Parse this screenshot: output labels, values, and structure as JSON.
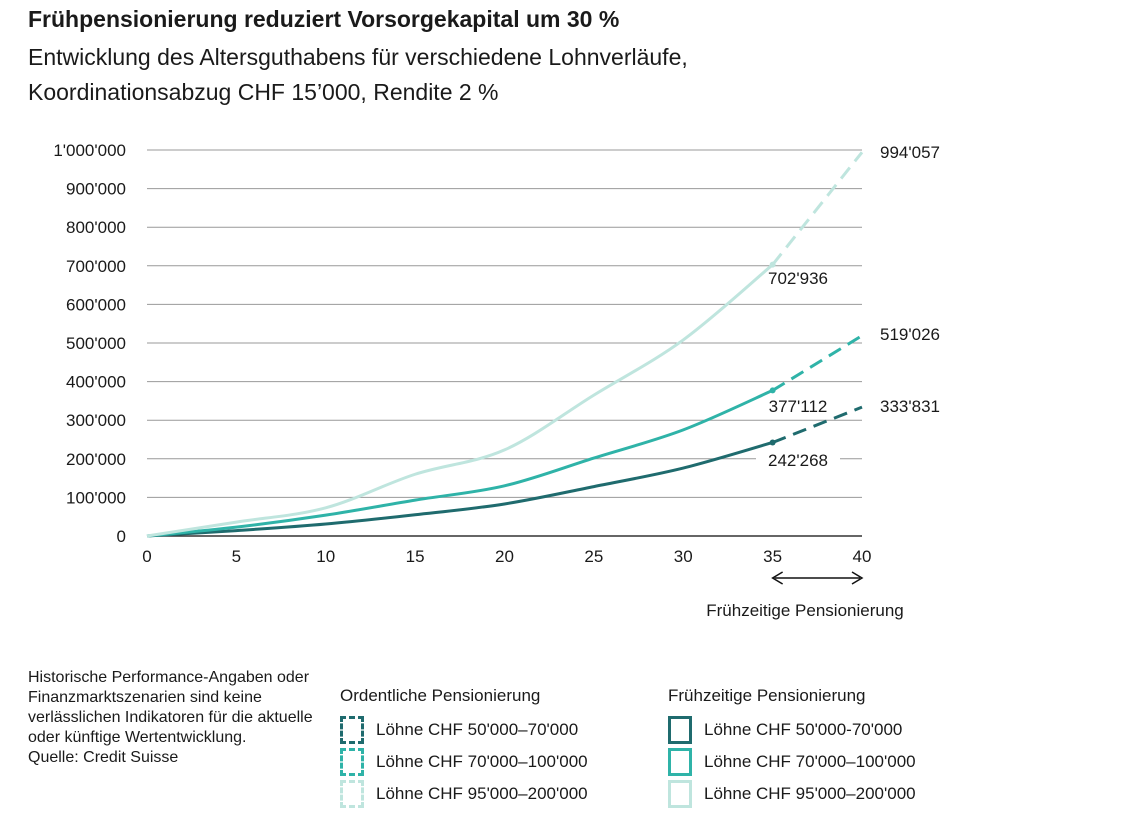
{
  "title": "Frühpensionierung reduziert Vorsorgekapital um 30 %",
  "subtitle_lines": [
    "Entwicklung des Altersguthabens für verschiedene Lohnverläufe,",
    "Koordinationsabzug CHF 15’000, Rendite 2 %"
  ],
  "note": "Historische Performance-Angaben oder Finanzmarktszenarien sind keine verlässlichen Indikatoren für die aktuelle oder künftige Wertentwicklung.",
  "source": "Quelle: Credit Suisse",
  "legend": {
    "ordinary_title": "Ordentliche Pensionierung",
    "early_title": "Frühzeitige Pensionierung",
    "ordinary": [
      "Löhne CHF 50'000–70'000",
      "Löhne CHF 70'000–100'000",
      "Löhne CHF 95'000–200'000"
    ],
    "early": [
      "Löhne CHF 50'000-70'000",
      "Löhne CHF 70'000–100'000",
      "Löhne CHF 95'000–200'000"
    ]
  },
  "colors": {
    "dark": "#1f6b6e",
    "mid": "#2fb3a8",
    "light": "#bfe5de"
  },
  "chart_data": {
    "type": "line",
    "title": "Frühpensionierung reduziert Vorsorgekapital um 30 %",
    "xlim": [
      0,
      40
    ],
    "ylim": [
      0,
      1000000
    ],
    "x_ticks": [
      "0",
      "5",
      "10",
      "15",
      "20",
      "25",
      "30",
      "35",
      "40"
    ],
    "y_ticks": [
      "0",
      "100'000",
      "200'000",
      "300'000",
      "400'000",
      "500'000",
      "600'000",
      "700'000",
      "800'000",
      "900'000",
      "1'000'000"
    ],
    "grid": true,
    "annotation": "Frühzeitige Pensionierung",
    "series": [
      {
        "name": "Löhne CHF 50'000-70'000",
        "color": "#1f6b6e",
        "x": [
          0,
          5,
          10,
          15,
          20,
          25,
          30,
          35
        ],
        "y": [
          0,
          14000,
          31000,
          55000,
          83000,
          128000,
          176000,
          242268
        ],
        "dashed_x": [
          35,
          40
        ],
        "dashed_y": [
          242268,
          333831
        ],
        "labels": [
          "242'268",
          "333'831"
        ]
      },
      {
        "name": "Löhne CHF 70'000–100'000",
        "color": "#2fb3a8",
        "x": [
          0,
          5,
          10,
          15,
          20,
          25,
          30,
          35
        ],
        "y": [
          0,
          23000,
          54000,
          93000,
          130000,
          202000,
          275000,
          377112
        ],
        "dashed_x": [
          35,
          40
        ],
        "dashed_y": [
          377112,
          519026
        ],
        "labels": [
          "377'112",
          "519'026"
        ]
      },
      {
        "name": "Löhne CHF 95'000–200'000",
        "color": "#bfe5de",
        "x": [
          0,
          5,
          10,
          15,
          20,
          25,
          30,
          35
        ],
        "y": [
          0,
          36000,
          73000,
          160000,
          223000,
          365000,
          508000,
          702936
        ],
        "dashed_x": [
          35,
          40
        ],
        "dashed_y": [
          702936,
          994057
        ],
        "labels": [
          "702'936",
          "994'057"
        ]
      }
    ]
  }
}
